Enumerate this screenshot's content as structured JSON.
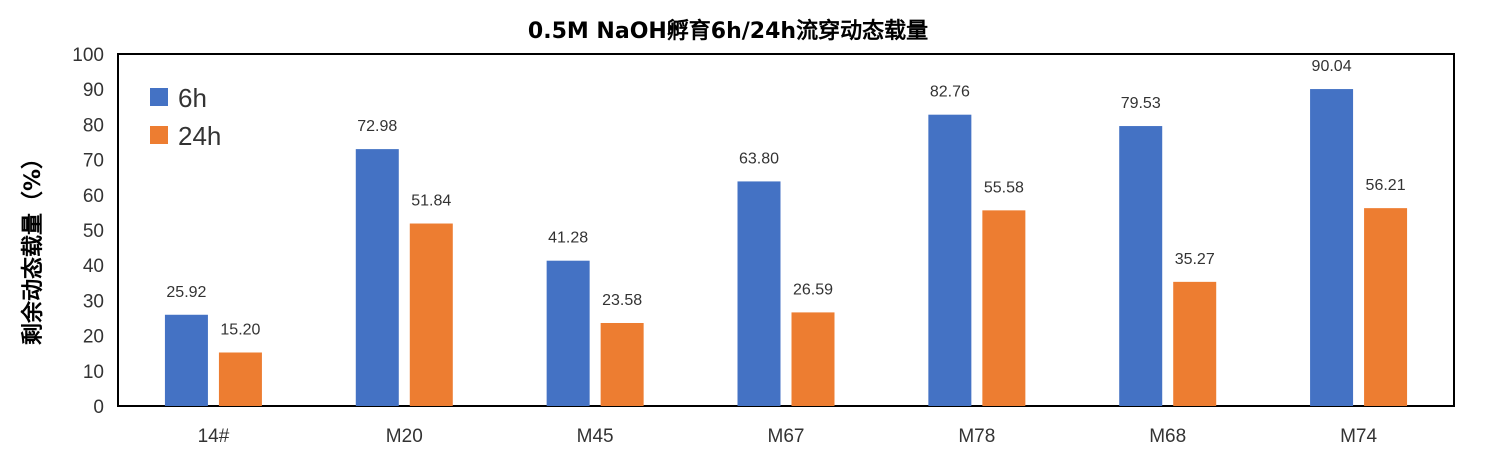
{
  "chart_data": {
    "type": "bar",
    "title": "0.5M NaOH孵育6h/24h流穿动态载量",
    "xlabel": "",
    "ylabel": "剩余动态载量（%）",
    "categories": [
      "14#",
      "M20",
      "M45",
      "M67",
      "M78",
      "M68",
      "M74"
    ],
    "series": [
      {
        "name": "6h",
        "color": "#4472C4",
        "values": [
          25.92,
          72.98,
          41.28,
          63.8,
          82.76,
          79.53,
          90.04
        ]
      },
      {
        "name": "24h",
        "color": "#ED7D31",
        "values": [
          15.2,
          51.84,
          23.58,
          26.59,
          55.58,
          35.27,
          56.21
        ]
      }
    ],
    "ylim": [
      0,
      100
    ],
    "yticks": [
      0,
      10,
      20,
      30,
      40,
      50,
      60,
      70,
      80,
      90,
      100
    ],
    "grid": false,
    "legend_position": "top-left",
    "data_labels": true
  }
}
